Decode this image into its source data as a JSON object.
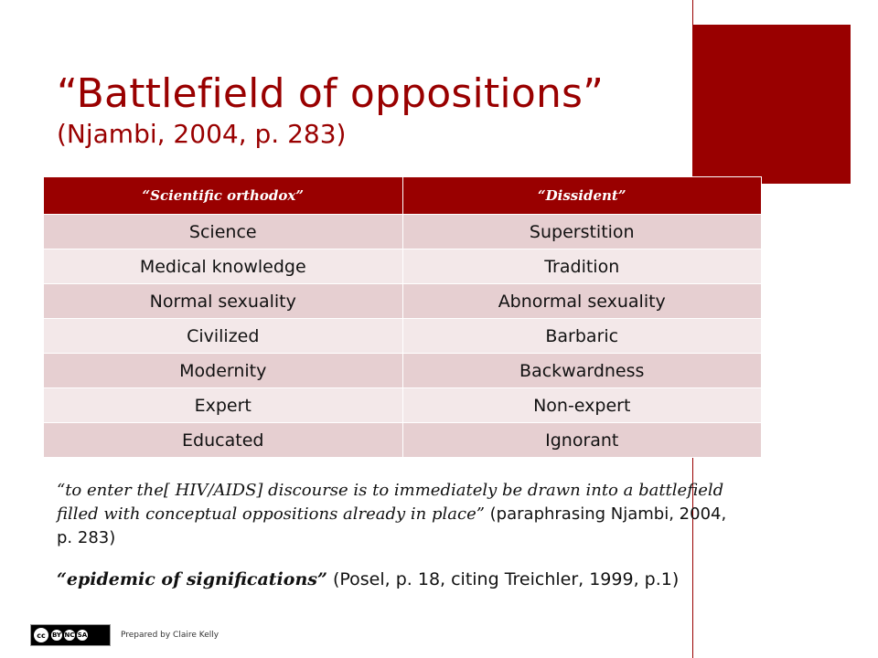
{
  "slide": {
    "title": "“Battlefield of oppositions”",
    "subtitle": "(Njambi, 2004, p. 283)",
    "accent_color": "#990000"
  },
  "table": {
    "headers": [
      "“Scientific orthodox”",
      "“Dissident”"
    ],
    "rows": [
      [
        "Science",
        "Superstition"
      ],
      [
        "Medical knowledge",
        "Tradition"
      ],
      [
        "Normal sexuality",
        "Abnormal sexuality"
      ],
      [
        "Civilized",
        "Barbaric"
      ],
      [
        "Modernity",
        "Backwardness"
      ],
      [
        "Expert",
        "Non-expert"
      ],
      [
        "Educated",
        "Ignorant"
      ]
    ]
  },
  "quotes": {
    "q1_text": "“to enter the[ HIV/AIDS] discourse is to immediately be drawn into a battlefield filled with conceptual oppositions already in place”",
    "q1_cite": " (paraphrasing Njambi, 2004, p. 283)",
    "q2_text": "“epidemic of significations”",
    "q2_cite": " (Posel, p. 18, citing Treichler, 1999, p.1)"
  },
  "footer": {
    "license_icon": "cc-by-nc-sa-icon",
    "license_glyphs": [
      "cc",
      "BY",
      "NC",
      "SA"
    ],
    "credit": "Prepared by Claire Kelly"
  }
}
